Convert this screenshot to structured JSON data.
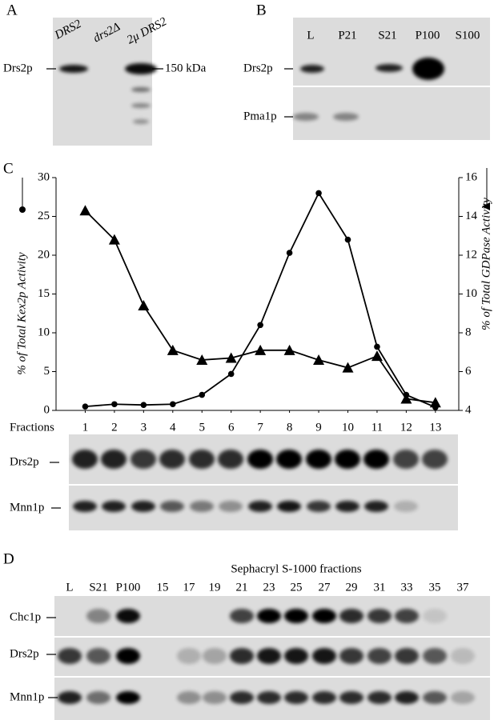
{
  "panels": {
    "a": {
      "label": "A",
      "lanes": [
        "DRS2",
        "drs2Δ",
        "2μ DRS2"
      ],
      "row": "Drs2p",
      "marker": "150 kDa"
    },
    "b": {
      "label": "B",
      "lanes": [
        "L",
        "P21",
        "S21",
        "P100",
        "S100"
      ],
      "rows": [
        "Drs2p",
        "Pma1p"
      ]
    },
    "c": {
      "label": "C",
      "rows": [
        "Drs2p",
        "Mnn1p"
      ]
    },
    "d": {
      "label": "D",
      "title": "Sephacryl S-1000 fractions",
      "lanes": [
        "L",
        "S21",
        "P100",
        "15",
        "17",
        "19",
        "21",
        "23",
        "25",
        "27",
        "29",
        "31",
        "33",
        "35",
        "37"
      ],
      "rows": [
        "Chc1p",
        "Drs2p",
        "Mnn1p"
      ]
    }
  },
  "chart_data": {
    "type": "line",
    "xlabel": "Fractions",
    "ylabel": "% of Total Kex2p Activity",
    "y2label": "% of Total GDPase Activity",
    "x": [
      1,
      2,
      3,
      4,
      5,
      6,
      7,
      8,
      9,
      10,
      11,
      12,
      13
    ],
    "xlim": [
      0,
      13.8
    ],
    "xticks": [
      1,
      2,
      3,
      4,
      5,
      6,
      7,
      8,
      9,
      10,
      11,
      12,
      13
    ],
    "ylim": [
      0,
      30
    ],
    "yticks": [
      0,
      5,
      10,
      15,
      20,
      25,
      30
    ],
    "y2lim": [
      4,
      16
    ],
    "y2ticks": [
      4,
      6,
      8,
      10,
      12,
      14,
      16
    ],
    "series": [
      {
        "color": "#000000",
        "marker": "circle",
        "values": [
          0.5,
          0.8,
          0.7,
          0.8,
          2,
          4.7,
          11,
          20.3,
          28,
          22,
          8.2,
          2,
          0.4
        ]
      },
      {
        "color": "#000000",
        "marker": "triangle",
        "axis": "y2",
        "values": [
          14.3,
          12.8,
          9.4,
          7.1,
          6.6,
          6.7,
          7.1,
          7.1,
          6.6,
          6.2,
          6.8,
          4.6,
          4.4
        ]
      }
    ]
  }
}
